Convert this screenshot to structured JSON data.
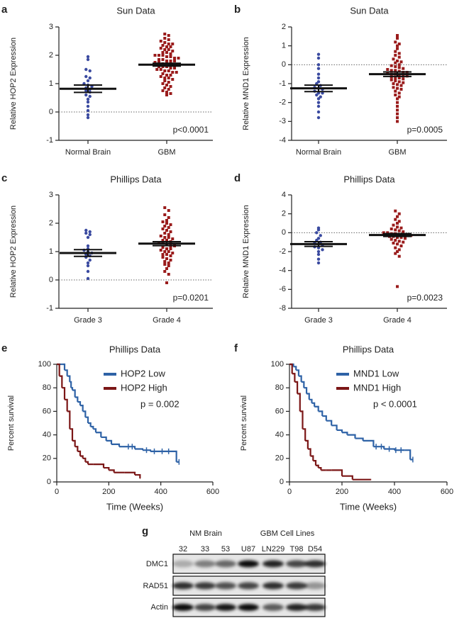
{
  "chart_data": [
    {
      "type": "dot",
      "panel": "a",
      "title": "Sun Data",
      "ylabel": "Relative HOP2 Expression",
      "annotation": "p<0.0001",
      "ylim": [
        -1,
        3
      ],
      "yticks": [
        -1,
        0,
        1,
        2,
        3
      ],
      "reference_line": 0,
      "series": [
        {
          "name": "Normal Brain",
          "color": "#3a4aa0",
          "marker": "circle",
          "mean": 0.82,
          "sem": 0.13,
          "values": [
            1.95,
            1.85,
            1.5,
            1.45,
            1.25,
            1.2,
            1.1,
            1.0,
            0.95,
            0.9,
            0.85,
            0.8,
            0.75,
            0.7,
            0.6,
            0.55,
            0.45,
            0.35,
            0.2,
            0.05,
            -0.1,
            -0.2
          ]
        },
        {
          "name": "GBM",
          "color": "#9a1c1c",
          "marker": "square",
          "mean": 1.67,
          "sem": 0.05,
          "values": [
            2.75,
            2.7,
            2.6,
            2.55,
            2.5,
            2.45,
            2.4,
            2.4,
            2.35,
            2.3,
            2.3,
            2.25,
            2.2,
            2.2,
            2.15,
            2.1,
            2.1,
            2.05,
            2.0,
            2.0,
            2.0,
            1.95,
            1.95,
            1.9,
            1.9,
            1.85,
            1.85,
            1.8,
            1.8,
            1.8,
            1.75,
            1.75,
            1.7,
            1.7,
            1.7,
            1.65,
            1.65,
            1.6,
            1.6,
            1.6,
            1.55,
            1.55,
            1.5,
            1.5,
            1.45,
            1.45,
            1.4,
            1.4,
            1.35,
            1.3,
            1.3,
            1.25,
            1.2,
            1.2,
            1.15,
            1.1,
            1.05,
            1.0,
            0.95,
            0.9,
            0.85,
            0.8,
            0.75,
            0.7,
            0.65,
            0.6
          ]
        }
      ]
    },
    {
      "type": "dot",
      "panel": "b",
      "title": "Sun Data",
      "ylabel": "Relative MND1 Expression",
      "annotation": "p=0.0005",
      "ylim": [
        -4,
        2
      ],
      "yticks": [
        -4,
        -3,
        -2,
        -1,
        0,
        1,
        2
      ],
      "reference_line": 0,
      "series": [
        {
          "name": "Normal Brain",
          "color": "#3a4aa0",
          "marker": "circle",
          "mean": -1.25,
          "sem": 0.17,
          "values": [
            0.55,
            0.35,
            0,
            -0.2,
            -0.5,
            -0.7,
            -0.9,
            -1.0,
            -1.1,
            -1.2,
            -1.25,
            -1.3,
            -1.4,
            -1.5,
            -1.5,
            -1.6,
            -1.7,
            -1.8,
            -2.0,
            -2.2,
            -2.5,
            -2.8
          ]
        },
        {
          "name": "GBM",
          "color": "#9a1c1c",
          "marker": "square",
          "mean": -0.5,
          "sem": 0.12,
          "values": [
            1.55,
            1.4,
            1.2,
            1.1,
            1.0,
            0.85,
            0.7,
            0.6,
            0.5,
            0.4,
            0.3,
            0.2,
            0.15,
            0.1,
            0.0,
            -0.05,
            -0.1,
            -0.15,
            -0.2,
            -0.25,
            -0.3,
            -0.3,
            -0.35,
            -0.4,
            -0.4,
            -0.45,
            -0.5,
            -0.5,
            -0.55,
            -0.6,
            -0.6,
            -0.65,
            -0.7,
            -0.7,
            -0.75,
            -0.8,
            -0.85,
            -0.9,
            -0.95,
            -1.0,
            -1.05,
            -1.1,
            -1.2,
            -1.25,
            -1.3,
            -1.4,
            -1.5,
            -1.6,
            -1.7,
            -1.8,
            -2.0,
            -2.2,
            -2.4,
            -2.6,
            -2.8,
            -3.0
          ]
        }
      ]
    },
    {
      "type": "dot",
      "panel": "c",
      "title": "Phillips Data",
      "ylabel": "Relative HOP2 Expression",
      "annotation": "p=0.0201",
      "ylim": [
        -1,
        3
      ],
      "yticks": [
        -1,
        0,
        1,
        2,
        3
      ],
      "reference_line": 0,
      "series": [
        {
          "name": "Grade 3",
          "color": "#3a4aa0",
          "marker": "circle",
          "mean": 0.95,
          "sem": 0.12,
          "values": [
            1.75,
            1.7,
            1.65,
            1.6,
            1.5,
            1.2,
            1.1,
            1.05,
            1.0,
            0.95,
            0.9,
            0.85,
            0.8,
            0.7,
            0.6,
            0.5,
            0.3,
            0.05
          ]
        },
        {
          "name": "Grade 4",
          "color": "#9a1c1c",
          "marker": "square",
          "mean": 1.28,
          "sem": 0.07,
          "values": [
            2.55,
            2.45,
            2.3,
            2.2,
            2.1,
            2.05,
            2.0,
            1.95,
            1.9,
            1.85,
            1.8,
            1.75,
            1.7,
            1.65,
            1.6,
            1.55,
            1.5,
            1.5,
            1.45,
            1.4,
            1.4,
            1.35,
            1.3,
            1.3,
            1.25,
            1.2,
            1.2,
            1.15,
            1.1,
            1.1,
            1.05,
            1.0,
            1.0,
            0.95,
            0.9,
            0.9,
            0.85,
            0.8,
            0.75,
            0.7,
            0.65,
            0.6,
            0.55,
            0.5,
            0.4,
            0.3,
            0.2,
            -0.1
          ]
        }
      ]
    },
    {
      "type": "dot",
      "panel": "d",
      "title": "Phillips Data",
      "ylabel": "Relative MND1 Expression",
      "annotation": "p=0.0023",
      "ylim": [
        -8,
        4
      ],
      "yticks": [
        -8,
        -6,
        -4,
        -2,
        0,
        2,
        4
      ],
      "reference_line": 0,
      "series": [
        {
          "name": "Grade 3",
          "color": "#3a4aa0",
          "marker": "circle",
          "mean": -1.2,
          "sem": 0.25,
          "values": [
            0.5,
            0.3,
            0,
            -0.3,
            -0.6,
            -0.8,
            -1.0,
            -1.1,
            -1.2,
            -1.3,
            -1.5,
            -1.6,
            -1.8,
            -2.0,
            -2.3,
            -2.8,
            -3.2
          ]
        },
        {
          "name": "Grade 4",
          "color": "#9a1c1c",
          "marker": "square",
          "mean": -0.25,
          "sem": 0.15,
          "values": [
            2.3,
            2.0,
            1.7,
            1.4,
            1.2,
            1.0,
            0.8,
            0.6,
            0.5,
            0.4,
            0.3,
            0.2,
            0.1,
            0.0,
            0,
            -0.1,
            -0.1,
            -0.2,
            -0.2,
            -0.3,
            -0.3,
            -0.4,
            -0.4,
            -0.5,
            -0.5,
            -0.6,
            -0.7,
            -0.8,
            -0.9,
            -1.0,
            -1.1,
            -1.2,
            -1.4,
            -1.6,
            -1.8,
            -2.0,
            -2.2,
            -2.5,
            -5.7
          ]
        }
      ]
    },
    {
      "type": "survival",
      "panel": "e",
      "title": "Phillips Data",
      "xlabel": "Time (Weeks)",
      "ylabel": "Percent survival",
      "annotation": "p = 0.002",
      "xlim": [
        0,
        600
      ],
      "xticks": [
        0,
        200,
        400,
        600
      ],
      "ylim": [
        0,
        100
      ],
      "yticks": [
        0,
        20,
        40,
        60,
        80,
        100
      ],
      "legend": "upper-right",
      "series": [
        {
          "name": "HOP2 Low",
          "color": "#2e62a6",
          "x": [
            0,
            20,
            30,
            40,
            50,
            55,
            60,
            70,
            80,
            90,
            100,
            110,
            120,
            130,
            140,
            150,
            170,
            190,
            210,
            240,
            270,
            300,
            330,
            360,
            450,
            460,
            470
          ],
          "values": [
            100,
            100,
            95,
            90,
            85,
            80,
            78,
            72,
            68,
            65,
            60,
            55,
            50,
            47,
            45,
            42,
            38,
            35,
            32,
            30,
            30,
            28,
            27,
            26,
            26,
            17,
            17
          ],
          "censored_x": [
            275,
            290,
            345,
            375,
            405,
            430,
            470
          ],
          "censored_y": [
            30,
            30,
            27,
            26,
            26,
            26,
            17
          ]
        },
        {
          "name": "HOP2 High",
          "color": "#7b1616",
          "x": [
            0,
            10,
            20,
            30,
            40,
            50,
            60,
            70,
            80,
            90,
            100,
            110,
            120,
            140,
            180,
            200,
            220,
            260,
            300,
            320
          ],
          "values": [
            100,
            90,
            80,
            70,
            60,
            45,
            35,
            30,
            26,
            22,
            20,
            17,
            15,
            15,
            12,
            10,
            8,
            8,
            6,
            3
          ],
          "censored_x": [],
          "censored_y": []
        }
      ]
    },
    {
      "type": "survival",
      "panel": "f",
      "title": "Phillips Data",
      "xlabel": "Time (Weeks)",
      "ylabel": "Percent survival",
      "annotation": "p < 0.0001",
      "xlim": [
        0,
        600
      ],
      "xticks": [
        0,
        200,
        400,
        600
      ],
      "ylim": [
        0,
        100
      ],
      "yticks": [
        0,
        20,
        40,
        60,
        80,
        100
      ],
      "legend": "upper-right",
      "series": [
        {
          "name": "MND1 Low",
          "color": "#2e62a6",
          "x": [
            0,
            15,
            25,
            35,
            45,
            55,
            65,
            75,
            85,
            95,
            110,
            125,
            140,
            160,
            180,
            200,
            220,
            250,
            280,
            320,
            360,
            400,
            440,
            460,
            470
          ],
          "values": [
            100,
            98,
            95,
            90,
            85,
            80,
            75,
            70,
            67,
            64,
            60,
            56,
            52,
            48,
            44,
            42,
            40,
            37,
            35,
            30,
            28,
            27,
            27,
            19,
            19
          ],
          "censored_x": [
            330,
            350,
            380,
            405,
            425,
            470
          ],
          "censored_y": [
            30,
            30,
            28,
            27,
            27,
            19
          ]
        },
        {
          "name": "MND1 High",
          "color": "#7b1616",
          "x": [
            0,
            10,
            20,
            30,
            40,
            50,
            60,
            70,
            80,
            90,
            100,
            110,
            120,
            140,
            160,
            200,
            240,
            310
          ],
          "values": [
            100,
            92,
            85,
            75,
            60,
            45,
            35,
            28,
            22,
            18,
            14,
            12,
            10,
            10,
            10,
            5,
            2,
            2
          ],
          "censored_x": [],
          "censored_y": []
        }
      ]
    }
  ],
  "blot": {
    "panel": "g",
    "groups": [
      "NM Brain",
      "GBM Cell Lines"
    ],
    "lanes": [
      "32",
      "33",
      "53",
      "U87",
      "LN229",
      "T98",
      "D54"
    ],
    "rows": [
      "DMC1",
      "RAD51",
      "Actin"
    ]
  }
}
